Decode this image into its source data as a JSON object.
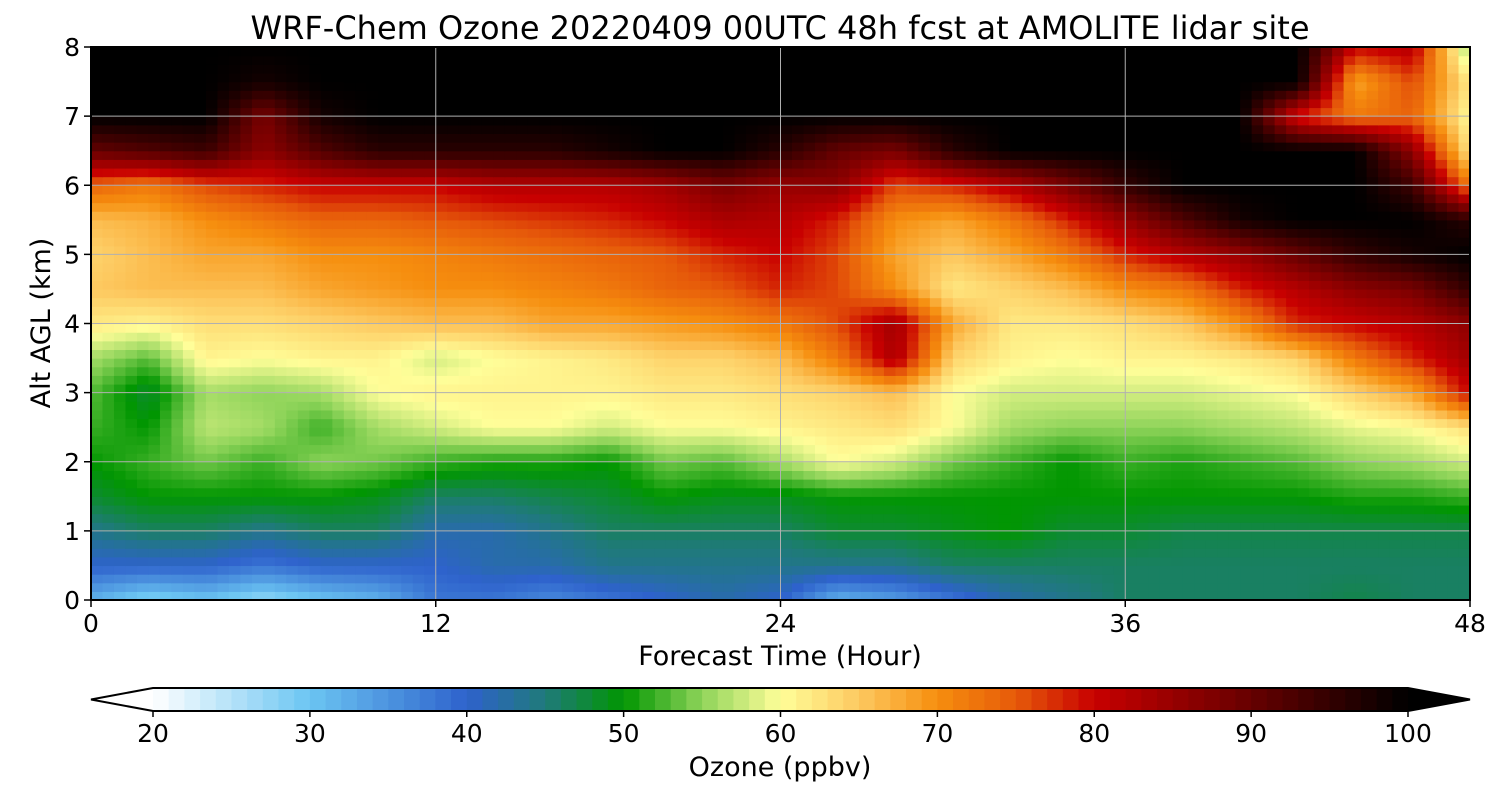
{
  "chart_data": {
    "type": "heatmap",
    "title": "WRF-Chem Ozone  20220409 00UTC 48h fcst at AMOLITE lidar site",
    "xlabel": "Forecast Time (Hour)",
    "ylabel": "Alt AGL (km)",
    "xlim": [
      0,
      48
    ],
    "ylim": [
      0,
      8
    ],
    "x_ticks": [
      0,
      12,
      24,
      36,
      48
    ],
    "y_ticks": [
      0,
      1,
      2,
      3,
      4,
      5,
      6,
      7,
      8
    ],
    "grid": true,
    "x": [
      0,
      2,
      4,
      6,
      8,
      10,
      12,
      14,
      16,
      18,
      20,
      22,
      24,
      26,
      28,
      30,
      32,
      34,
      36,
      38,
      40,
      42,
      44,
      46,
      48
    ],
    "y": [
      0,
      0.5,
      1,
      1.5,
      2,
      2.5,
      3,
      3.5,
      4,
      4.5,
      5,
      5.5,
      6,
      6.5,
      7,
      7.5,
      8
    ],
    "z": [
      [
        32,
        28,
        30,
        27,
        30,
        32,
        38,
        38,
        36,
        38,
        40,
        42,
        40,
        32,
        34,
        38,
        42,
        44,
        46,
        46,
        46,
        46,
        47,
        46,
        46
      ],
      [
        40,
        40,
        40,
        38,
        40,
        40,
        40,
        42,
        42,
        44,
        44,
        44,
        44,
        44,
        44,
        46,
        46,
        46,
        46,
        46,
        46,
        46,
        46,
        46,
        46
      ],
      [
        44,
        46,
        46,
        44,
        46,
        46,
        42,
        42,
        44,
        46,
        46,
        46,
        46,
        48,
        48,
        49,
        50,
        48,
        48,
        47,
        47,
        47,
        47,
        47,
        47
      ],
      [
        48,
        50,
        50,
        50,
        50,
        49,
        46,
        46,
        47,
        48,
        50,
        49,
        49,
        50,
        50,
        50,
        50,
        50,
        50,
        50,
        50,
        50,
        51,
        51,
        52
      ],
      [
        50,
        52,
        54,
        52,
        55,
        54,
        52,
        51,
        51,
        50,
        54,
        53,
        56,
        60,
        58,
        54,
        52,
        50,
        52,
        51,
        52,
        53,
        55,
        56,
        58
      ],
      [
        52,
        50,
        57,
        56,
        52,
        56,
        58,
        60,
        60,
        58,
        60,
        60,
        61,
        62,
        63,
        60,
        56,
        55,
        55,
        55,
        56,
        57,
        59,
        60,
        63
      ],
      [
        53,
        48,
        56,
        55,
        56,
        60,
        61,
        61,
        61,
        61,
        62,
        62,
        63,
        64,
        66,
        60,
        58,
        58,
        58,
        58,
        59,
        60,
        64,
        68,
        80
      ],
      [
        56,
        53,
        61,
        60,
        61,
        61,
        58,
        60,
        61,
        62,
        64,
        64,
        66,
        72,
        83,
        64,
        61,
        60,
        61,
        61,
        62,
        64,
        72,
        78,
        84
      ],
      [
        62,
        61,
        63,
        63,
        64,
        65,
        66,
        66,
        68,
        68,
        69,
        70,
        72,
        76,
        84,
        68,
        62,
        62,
        63,
        65,
        70,
        78,
        80,
        82,
        86
      ],
      [
        65,
        66,
        66,
        66,
        68,
        69,
        70,
        70,
        71,
        72,
        74,
        75,
        78,
        76,
        70,
        62,
        64,
        66,
        70,
        72,
        78,
        82,
        86,
        88,
        95
      ],
      [
        64,
        66,
        68,
        68,
        70,
        70,
        71,
        72,
        73,
        74,
        75,
        78,
        80,
        76,
        68,
        65,
        68,
        72,
        78,
        82,
        85,
        90,
        95,
        98,
        100
      ],
      [
        66,
        67,
        70,
        72,
        74,
        74,
        75,
        76,
        77,
        78,
        80,
        83,
        82,
        78,
        70,
        68,
        72,
        78,
        85,
        92,
        98,
        100,
        100,
        100,
        96
      ],
      [
        74,
        72,
        76,
        78,
        80,
        80,
        80,
        82,
        82,
        82,
        84,
        88,
        85,
        86,
        76,
        78,
        82,
        88,
        95,
        100,
        100,
        100,
        100,
        94,
        72
      ],
      [
        90,
        92,
        94,
        86,
        92,
        96,
        96,
        96,
        96,
        98,
        100,
        100,
        96,
        90,
        88,
        96,
        100,
        100,
        100,
        100,
        100,
        100,
        100,
        86,
        62
      ],
      [
        100,
        100,
        100,
        88,
        98,
        100,
        100,
        100,
        100,
        100,
        100,
        100,
        100,
        100,
        100,
        100,
        100,
        100,
        100,
        100,
        100,
        78,
        72,
        74,
        60
      ],
      [
        100,
        100,
        100,
        98,
        100,
        100,
        100,
        100,
        100,
        100,
        100,
        100,
        100,
        100,
        100,
        100,
        100,
        100,
        100,
        100,
        100,
        100,
        68,
        76,
        62
      ],
      [
        100,
        100,
        100,
        100,
        100,
        100,
        100,
        100,
        100,
        100,
        100,
        100,
        100,
        100,
        100,
        100,
        100,
        100,
        100,
        100,
        100,
        100,
        80,
        82,
        55
      ]
    ],
    "colorbar": {
      "label": "Ozone  (ppbv)",
      "min": 20,
      "max": 100,
      "ticks": [
        20,
        30,
        40,
        50,
        60,
        70,
        80,
        90,
        100
      ],
      "extend": "both",
      "stops": [
        {
          "v": 20,
          "c": "#ffffff"
        },
        {
          "v": 30,
          "c": "#6bc5f2"
        },
        {
          "v": 40,
          "c": "#2e62cc"
        },
        {
          "v": 45,
          "c": "#1f7a7a"
        },
        {
          "v": 50,
          "c": "#019601"
        },
        {
          "v": 55,
          "c": "#8fd45a"
        },
        {
          "v": 60,
          "c": "#fffe99"
        },
        {
          "v": 65,
          "c": "#fdc960"
        },
        {
          "v": 70,
          "c": "#f68e0e"
        },
        {
          "v": 75,
          "c": "#e65a0a"
        },
        {
          "v": 80,
          "c": "#c80000"
        },
        {
          "v": 90,
          "c": "#660000"
        },
        {
          "v": 100,
          "c": "#000000"
        }
      ]
    }
  }
}
